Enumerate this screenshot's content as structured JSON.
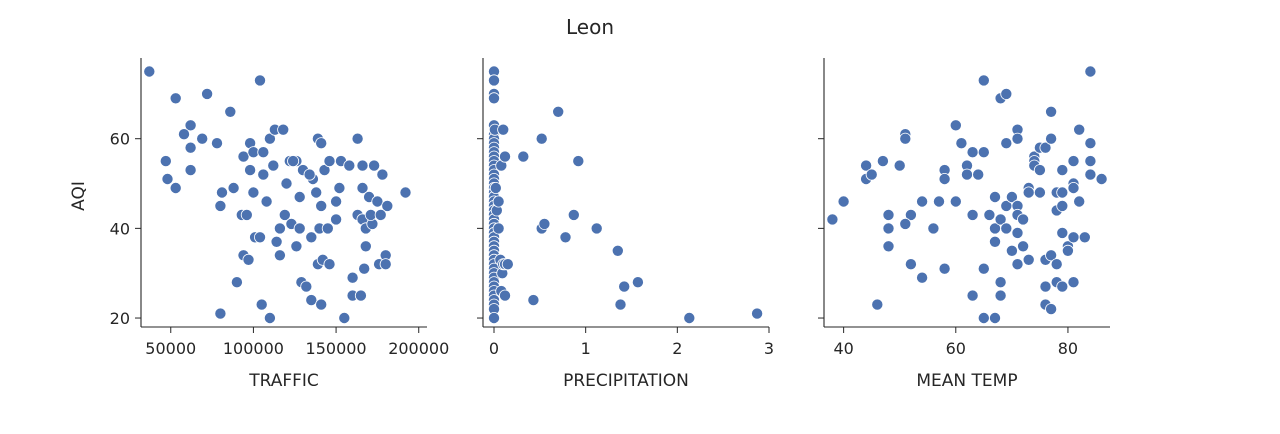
{
  "title": "Leon",
  "chart_data": {
    "type": "scatter",
    "title": "Leon",
    "ylabel": "AQI",
    "ylim": [
      18,
      78
    ],
    "yticks": [
      20,
      40,
      60
    ],
    "grid": false,
    "marker_color": "#4c72b0",
    "panels": [
      {
        "xlabel": "TRAFFIC",
        "xlim": [
          32000,
          205000
        ],
        "xticks": [
          50000,
          100000,
          150000,
          200000
        ],
        "xtick_labels": [
          "50000",
          "100000",
          "150000",
          "200000"
        ],
        "points": [
          [
            37000,
            75
          ],
          [
            53000,
            69
          ],
          [
            72000,
            70
          ],
          [
            104000,
            73
          ],
          [
            86000,
            66
          ],
          [
            62000,
            63
          ],
          [
            58000,
            61
          ],
          [
            62000,
            58
          ],
          [
            69000,
            60
          ],
          [
            78000,
            59
          ],
          [
            47000,
            55
          ],
          [
            62000,
            53
          ],
          [
            48000,
            51
          ],
          [
            53000,
            49
          ],
          [
            81000,
            48
          ],
          [
            80000,
            45
          ],
          [
            88000,
            49
          ],
          [
            94000,
            56
          ],
          [
            98000,
            59
          ],
          [
            100000,
            57
          ],
          [
            106000,
            57
          ],
          [
            110000,
            60
          ],
          [
            113000,
            62
          ],
          [
            118000,
            62
          ],
          [
            98000,
            53
          ],
          [
            106000,
            52
          ],
          [
            112000,
            54
          ],
          [
            122000,
            55
          ],
          [
            126000,
            55
          ],
          [
            130000,
            53
          ],
          [
            136000,
            51
          ],
          [
            139000,
            60
          ],
          [
            141000,
            59
          ],
          [
            143000,
            53
          ],
          [
            146000,
            55
          ],
          [
            153000,
            55
          ],
          [
            158000,
            54
          ],
          [
            163000,
            60
          ],
          [
            166000,
            54
          ],
          [
            173000,
            54
          ],
          [
            178000,
            52
          ],
          [
            192000,
            48
          ],
          [
            100000,
            48
          ],
          [
            108000,
            46
          ],
          [
            120000,
            50
          ],
          [
            128000,
            47
          ],
          [
            138000,
            48
          ],
          [
            141000,
            45
          ],
          [
            150000,
            46
          ],
          [
            152000,
            49
          ],
          [
            166000,
            49
          ],
          [
            170000,
            47
          ],
          [
            175000,
            46
          ],
          [
            181000,
            45
          ],
          [
            93000,
            43
          ],
          [
            96000,
            43
          ],
          [
            101000,
            38
          ],
          [
            104000,
            38
          ],
          [
            116000,
            40
          ],
          [
            119000,
            43
          ],
          [
            123000,
            41
          ],
          [
            128000,
            40
          ],
          [
            135000,
            38
          ],
          [
            140000,
            40
          ],
          [
            145000,
            40
          ],
          [
            150000,
            42
          ],
          [
            163000,
            43
          ],
          [
            166000,
            42
          ],
          [
            168000,
            40
          ],
          [
            172000,
            41
          ],
          [
            94000,
            34
          ],
          [
            97000,
            33
          ],
          [
            114000,
            37
          ],
          [
            116000,
            34
          ],
          [
            126000,
            36
          ],
          [
            129000,
            28
          ],
          [
            132000,
            27
          ],
          [
            139000,
            32
          ],
          [
            142000,
            33
          ],
          [
            146000,
            32
          ],
          [
            160000,
            29
          ],
          [
            167000,
            31
          ],
          [
            168000,
            36
          ],
          [
            176000,
            32
          ],
          [
            180000,
            34
          ],
          [
            180000,
            32
          ],
          [
            90000,
            28
          ],
          [
            80000,
            21
          ],
          [
            105000,
            23
          ],
          [
            110000,
            20
          ],
          [
            135000,
            24
          ],
          [
            141000,
            23
          ],
          [
            155000,
            20
          ],
          [
            160000,
            25
          ],
          [
            165000,
            25
          ],
          [
            171000,
            43
          ],
          [
            177000,
            43
          ],
          [
            124000,
            55
          ],
          [
            134000,
            52
          ]
        ]
      },
      {
        "xlabel": "PRECIPITATION",
        "xlim": [
          -0.12,
          3.0
        ],
        "xticks": [
          0,
          1,
          2,
          3
        ],
        "xtick_labels": [
          "0",
          "1",
          "2",
          "3"
        ],
        "points": [
          [
            0,
            75
          ],
          [
            0,
            73
          ],
          [
            0,
            70
          ],
          [
            0,
            69
          ],
          [
            0,
            63
          ],
          [
            0,
            61
          ],
          [
            0,
            60
          ],
          [
            0,
            59
          ],
          [
            0,
            58
          ],
          [
            0,
            57
          ],
          [
            0,
            56
          ],
          [
            0,
            55
          ],
          [
            0,
            54
          ],
          [
            0,
            53
          ],
          [
            0,
            52
          ],
          [
            0,
            51
          ],
          [
            0,
            50
          ],
          [
            0,
            49
          ],
          [
            0,
            48
          ],
          [
            0,
            47
          ],
          [
            0,
            46
          ],
          [
            0,
            45
          ],
          [
            0,
            44
          ],
          [
            0,
            43
          ],
          [
            0,
            42
          ],
          [
            0,
            41
          ],
          [
            0,
            40
          ],
          [
            0,
            39
          ],
          [
            0,
            38
          ],
          [
            0,
            37
          ],
          [
            0,
            36
          ],
          [
            0,
            35
          ],
          [
            0,
            34
          ],
          [
            0,
            33
          ],
          [
            0,
            32
          ],
          [
            0,
            31
          ],
          [
            0,
            30
          ],
          [
            0,
            29
          ],
          [
            0,
            28
          ],
          [
            0,
            27
          ],
          [
            0,
            26
          ],
          [
            0,
            25
          ],
          [
            0,
            24
          ],
          [
            0,
            23
          ],
          [
            0,
            22
          ],
          [
            0,
            20
          ],
          [
            0.01,
            62
          ],
          [
            0.02,
            49
          ],
          [
            0.03,
            44
          ],
          [
            0.05,
            46
          ],
          [
            0.05,
            40
          ],
          [
            0.07,
            33
          ],
          [
            0.08,
            54
          ],
          [
            0.08,
            26
          ],
          [
            0.09,
            30
          ],
          [
            0.1,
            32
          ],
          [
            0.12,
            32
          ],
          [
            0.15,
            32
          ],
          [
            0.1,
            62
          ],
          [
            0.12,
            25
          ],
          [
            0.12,
            56
          ],
          [
            0.32,
            56
          ],
          [
            0.43,
            24
          ],
          [
            0.52,
            60
          ],
          [
            0.52,
            40
          ],
          [
            0.55,
            41
          ],
          [
            0.7,
            66
          ],
          [
            0.78,
            38
          ],
          [
            0.87,
            43
          ],
          [
            0.92,
            55
          ],
          [
            1.12,
            40
          ],
          [
            1.35,
            35
          ],
          [
            1.38,
            23
          ],
          [
            1.42,
            27
          ],
          [
            1.57,
            28
          ],
          [
            2.13,
            20
          ],
          [
            2.87,
            21
          ]
        ]
      },
      {
        "xlabel": "MEAN TEMP",
        "xlim": [
          36.5,
          87.5
        ],
        "xticks": [
          40,
          60,
          80
        ],
        "xtick_labels": [
          "40",
          "60",
          "80"
        ],
        "points": [
          [
            38,
            42
          ],
          [
            40,
            46
          ],
          [
            44,
            51
          ],
          [
            44,
            54
          ],
          [
            45,
            52
          ],
          [
            46,
            23
          ],
          [
            47,
            55
          ],
          [
            48,
            43
          ],
          [
            48,
            40
          ],
          [
            48,
            36
          ],
          [
            50,
            54
          ],
          [
            51,
            61
          ],
          [
            51,
            60
          ],
          [
            52,
            43
          ],
          [
            51,
            41
          ],
          [
            52,
            32
          ],
          [
            54,
            46
          ],
          [
            54,
            29
          ],
          [
            56,
            40
          ],
          [
            57,
            46
          ],
          [
            58,
            53
          ],
          [
            58,
            51
          ],
          [
            58,
            31
          ],
          [
            60,
            63
          ],
          [
            60,
            46
          ],
          [
            61,
            59
          ],
          [
            62,
            54
          ],
          [
            62,
            52
          ],
          [
            63,
            57
          ],
          [
            63,
            43
          ],
          [
            63,
            25
          ],
          [
            64,
            52
          ],
          [
            65,
            73
          ],
          [
            65,
            57
          ],
          [
            65,
            31
          ],
          [
            65,
            20
          ],
          [
            66,
            43
          ],
          [
            67,
            47
          ],
          [
            67,
            40
          ],
          [
            67,
            37
          ],
          [
            67,
            20
          ],
          [
            68,
            69
          ],
          [
            69,
            70
          ],
          [
            68,
            42
          ],
          [
            68,
            28
          ],
          [
            68,
            25
          ],
          [
            69,
            59
          ],
          [
            69,
            45
          ],
          [
            69,
            40
          ],
          [
            70,
            47
          ],
          [
            70,
            35
          ],
          [
            71,
            62
          ],
          [
            71,
            60
          ],
          [
            71,
            45
          ],
          [
            71,
            43
          ],
          [
            71,
            39
          ],
          [
            71,
            32
          ],
          [
            72,
            42
          ],
          [
            72,
            36
          ],
          [
            73,
            33
          ],
          [
            73,
            49
          ],
          [
            73,
            48
          ],
          [
            74,
            56
          ],
          [
            74,
            55
          ],
          [
            74,
            54
          ],
          [
            75,
            53
          ],
          [
            75,
            58
          ],
          [
            75,
            48
          ],
          [
            76,
            58
          ],
          [
            76,
            33
          ],
          [
            76,
            27
          ],
          [
            76,
            23
          ],
          [
            77,
            66
          ],
          [
            77,
            60
          ],
          [
            77,
            34
          ],
          [
            77,
            22
          ],
          [
            78,
            48
          ],
          [
            78,
            44
          ],
          [
            78,
            32
          ],
          [
            78,
            28
          ],
          [
            79,
            53
          ],
          [
            79,
            48
          ],
          [
            79,
            39
          ],
          [
            79,
            27
          ],
          [
            80,
            36
          ],
          [
            80,
            35
          ],
          [
            81,
            55
          ],
          [
            81,
            50
          ],
          [
            81,
            49
          ],
          [
            81,
            38
          ],
          [
            81,
            28
          ],
          [
            82,
            62
          ],
          [
            82,
            46
          ],
          [
            83,
            38
          ],
          [
            84,
            75
          ],
          [
            84,
            59
          ],
          [
            84,
            55
          ],
          [
            84,
            52
          ],
          [
            86,
            51
          ],
          [
            79,
            45
          ]
        ]
      }
    ]
  }
}
